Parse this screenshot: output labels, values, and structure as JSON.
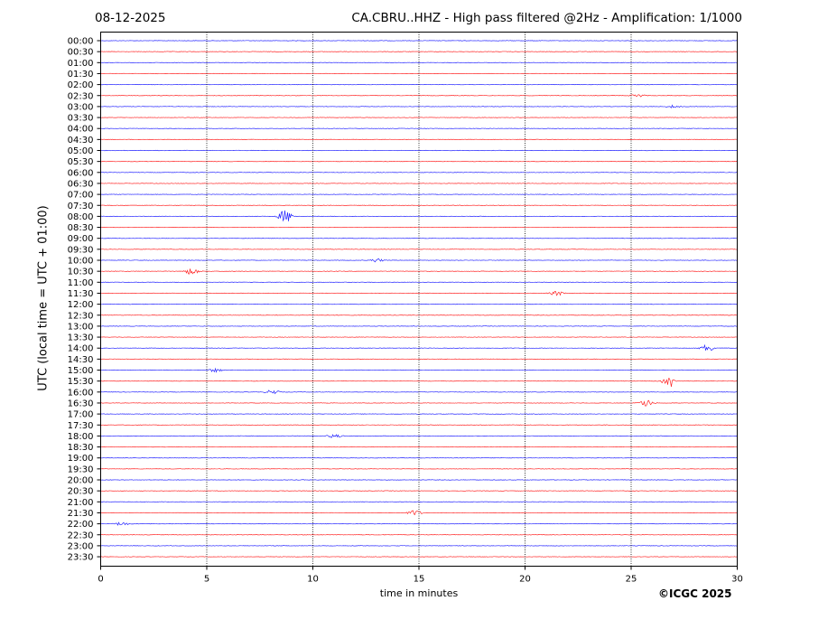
{
  "header": {
    "date": "08-12-2025",
    "title": "CA.CBRU..HHZ - High pass filtered @2Hz - Amplification: 1/1000"
  },
  "footer": {
    "copyright": "©ICGC 2025"
  },
  "chart_data": {
    "type": "line",
    "title": "CA.CBRU..HHZ - High pass filtered @2Hz - Amplification: 1/1000",
    "xlabel": "time in minutes",
    "ylabel": "UTC (local time = UTC + 01:00)",
    "xlim": [
      0,
      30
    ],
    "x_ticks": [
      0,
      5,
      10,
      15,
      20,
      25,
      30
    ],
    "x_gridlines": [
      5,
      10,
      15,
      20,
      25
    ],
    "y_ticks": [
      "00:00",
      "00:30",
      "01:00",
      "01:30",
      "02:00",
      "02:30",
      "03:00",
      "03:30",
      "04:00",
      "04:30",
      "05:00",
      "05:30",
      "06:00",
      "06:30",
      "07:00",
      "07:30",
      "08:00",
      "08:30",
      "09:00",
      "09:30",
      "10:00",
      "10:30",
      "11:00",
      "11:30",
      "12:00",
      "12:30",
      "13:00",
      "13:30",
      "14:00",
      "14:30",
      "15:00",
      "15:30",
      "16:00",
      "16:30",
      "17:00",
      "17:30",
      "18:00",
      "18:30",
      "19:00",
      "19:30",
      "20:00",
      "20:30",
      "21:00",
      "21:30",
      "22:00",
      "22:30",
      "23:00",
      "23:30"
    ],
    "trace_colors": [
      "#0000ff",
      "#ff0000"
    ],
    "events": [
      {
        "trace": "02:30",
        "x": 25.3,
        "amp": 0.4
      },
      {
        "trace": "03:00",
        "x": 27.0,
        "amp": 0.3
      },
      {
        "trace": "08:00",
        "x": 8.7,
        "amp": 1.5
      },
      {
        "trace": "10:00",
        "x": 13.0,
        "amp": 0.4
      },
      {
        "trace": "10:30",
        "x": 4.3,
        "amp": 0.8
      },
      {
        "trace": "11:30",
        "x": 21.5,
        "amp": 0.5
      },
      {
        "trace": "14:00",
        "x": 28.6,
        "amp": 0.8
      },
      {
        "trace": "15:00",
        "x": 5.4,
        "amp": 0.4
      },
      {
        "trace": "15:30",
        "x": 26.8,
        "amp": 1.5
      },
      {
        "trace": "16:00",
        "x": 8.1,
        "amp": 0.5
      },
      {
        "trace": "16:30",
        "x": 25.7,
        "amp": 0.8
      },
      {
        "trace": "18:00",
        "x": 11.0,
        "amp": 0.4
      },
      {
        "trace": "21:30",
        "x": 14.8,
        "amp": 0.6
      },
      {
        "trace": "22:00",
        "x": 1.0,
        "amp": 0.4
      }
    ]
  }
}
